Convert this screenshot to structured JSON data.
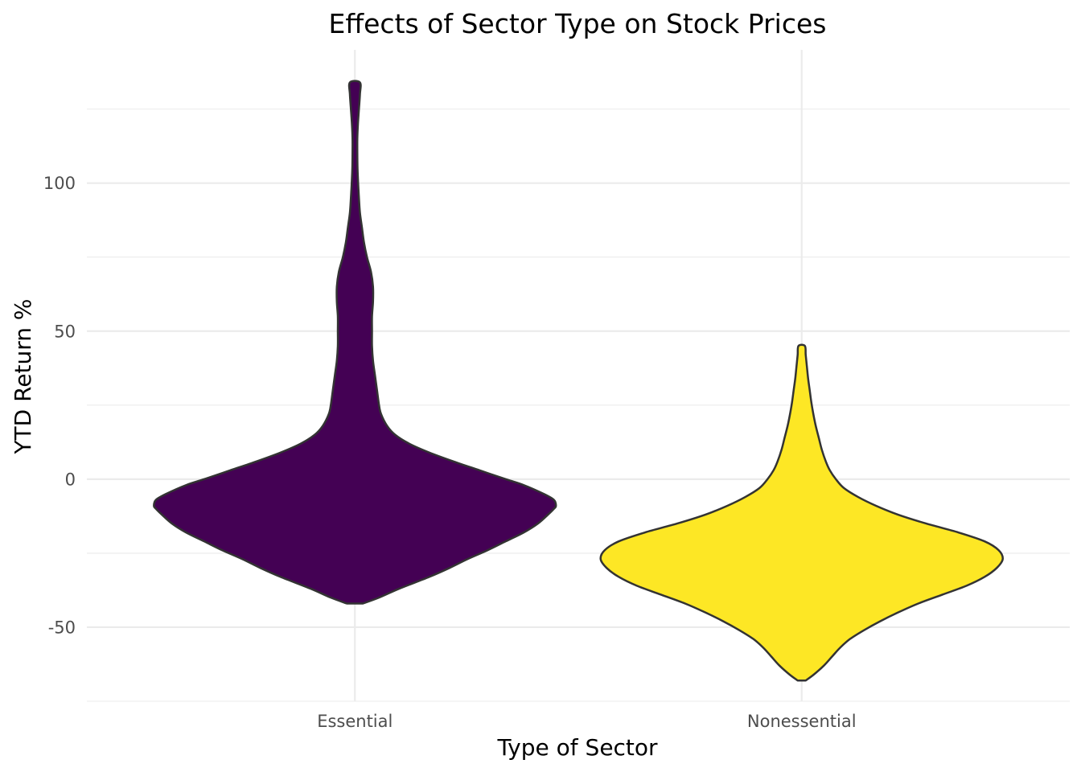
{
  "chart_data": {
    "type": "violin",
    "title": "Effects of Sector Type on Stock Prices",
    "xlabel": "Type of Sector",
    "ylabel": "YTD Return %",
    "categories": [
      "Essential",
      "Nonessential"
    ],
    "ylim": [
      -75,
      145
    ],
    "y_ticks": [
      -50,
      0,
      50,
      100
    ],
    "y_tick_labels": [
      "-50",
      "0",
      "50",
      "100"
    ],
    "y_minor_ticks": [
      -75,
      -25,
      25,
      75,
      125
    ],
    "grid": true,
    "legend": "none",
    "series": [
      {
        "category": "Essential",
        "color": "#440154",
        "min": -42,
        "max": 134,
        "density_profile": [
          [
            -42,
            0.04
          ],
          [
            -40,
            0.12
          ],
          [
            -37,
            0.22
          ],
          [
            -33,
            0.37
          ],
          [
            -30,
            0.47
          ],
          [
            -27,
            0.56
          ],
          [
            -24,
            0.66
          ],
          [
            -21,
            0.75
          ],
          [
            -18,
            0.84
          ],
          [
            -15,
            0.91
          ],
          [
            -12,
            0.96
          ],
          [
            -10,
            0.99
          ],
          [
            -9,
            1.0
          ],
          [
            -7,
            0.99
          ],
          [
            -5,
            0.94
          ],
          [
            -2,
            0.84
          ],
          [
            0,
            0.75
          ],
          [
            3,
            0.62
          ],
          [
            6,
            0.49
          ],
          [
            9,
            0.37
          ],
          [
            12,
            0.27
          ],
          [
            15,
            0.2
          ],
          [
            18,
            0.16
          ],
          [
            22,
            0.13
          ],
          [
            25,
            0.12
          ],
          [
            30,
            0.11
          ],
          [
            35,
            0.1
          ],
          [
            40,
            0.09
          ],
          [
            45,
            0.085
          ],
          [
            50,
            0.085
          ],
          [
            55,
            0.085
          ],
          [
            60,
            0.09
          ],
          [
            65,
            0.09
          ],
          [
            70,
            0.08
          ],
          [
            75,
            0.06
          ],
          [
            80,
            0.045
          ],
          [
            85,
            0.035
          ],
          [
            90,
            0.025
          ],
          [
            95,
            0.02
          ],
          [
            100,
            0.016
          ],
          [
            105,
            0.013
          ],
          [
            110,
            0.012
          ],
          [
            115,
            0.012
          ],
          [
            120,
            0.015
          ],
          [
            125,
            0.02
          ],
          [
            130,
            0.025
          ],
          [
            134,
            0.025
          ]
        ]
      },
      {
        "category": "Nonessential",
        "color": "#fde725",
        "min": -68,
        "max": 45,
        "density_profile": [
          [
            -68,
            0.02
          ],
          [
            -66,
            0.06
          ],
          [
            -63,
            0.11
          ],
          [
            -60,
            0.15
          ],
          [
            -57,
            0.19
          ],
          [
            -54,
            0.24
          ],
          [
            -51,
            0.31
          ],
          [
            -48,
            0.39
          ],
          [
            -45,
            0.48
          ],
          [
            -42,
            0.58
          ],
          [
            -39,
            0.7
          ],
          [
            -36,
            0.82
          ],
          [
            -33,
            0.91
          ],
          [
            -30,
            0.97
          ],
          [
            -27,
            1.0
          ],
          [
            -24,
            0.98
          ],
          [
            -21,
            0.91
          ],
          [
            -18,
            0.78
          ],
          [
            -15,
            0.62
          ],
          [
            -12,
            0.48
          ],
          [
            -9,
            0.37
          ],
          [
            -6,
            0.28
          ],
          [
            -3,
            0.21
          ],
          [
            0,
            0.17
          ],
          [
            3,
            0.14
          ],
          [
            6,
            0.12
          ],
          [
            10,
            0.1
          ],
          [
            14,
            0.085
          ],
          [
            18,
            0.07
          ],
          [
            22,
            0.058
          ],
          [
            26,
            0.048
          ],
          [
            30,
            0.04
          ],
          [
            34,
            0.032
          ],
          [
            38,
            0.026
          ],
          [
            42,
            0.02
          ],
          [
            45,
            0.016
          ]
        ]
      }
    ]
  }
}
